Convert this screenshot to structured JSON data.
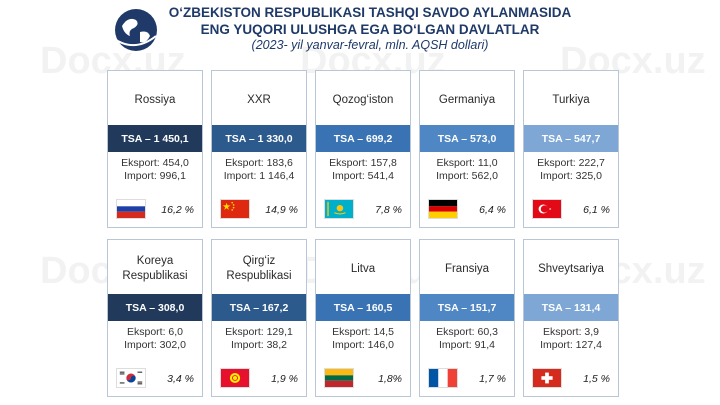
{
  "header": {
    "title_line1": "O‘ZBEKISTON RESPUBLIKASI TASHQI SAVDO AYLANMASIDA",
    "title_line2": "ENG YUQORI ULUSHGA EGA BO‘LGAN DAVLATLAR",
    "subtitle": "(2023- yil yanvar-fevral, mln. AQSH dollari)"
  },
  "watermark": "Docx.uz",
  "countries": [
    {
      "name": "Rossiya",
      "tsa": "TSA – 1 450,1",
      "export": "Eksport: 454,0",
      "import": "Import: 996,1",
      "share": "16,2 %",
      "flag": "russia-flag-icon",
      "band_color": "#213a5c"
    },
    {
      "name": "XXR",
      "tsa": "TSA – 1 330,0",
      "export": "Eksport: 183,6",
      "import": "Import: 1 146,4",
      "share": "14,9 %",
      "flag": "china-flag-icon",
      "band_color": "#2c5a8c"
    },
    {
      "name": "Qozog‘iston",
      "tsa": "TSA – 699,2",
      "export": "Eksport: 157,8",
      "import": "Import: 541,4",
      "share": "7,8 %",
      "flag": "kazakhstan-flag-icon",
      "band_color": "#3a73b4"
    },
    {
      "name": "Germaniya",
      "tsa": "TSA – 573,0",
      "export": "Eksport: 11,0",
      "import": "Import: 562,0",
      "share": "6,4 %",
      "flag": "germany-flag-icon",
      "band_color": "#4f86c4"
    },
    {
      "name": "Turkiya",
      "tsa": "TSA – 547,7",
      "export": "Eksport: 222,7",
      "import": "Import: 325,0",
      "share": "6,1 %",
      "flag": "turkey-flag-icon",
      "band_color": "#7ea7d6"
    },
    {
      "name": "Koreya Respublikasi",
      "tsa": "TSA – 308,0",
      "export": "Eksport: 6,0",
      "import": "Import: 302,0",
      "share": "3,4 %",
      "flag": "korea-flag-icon",
      "band_color": "#213a5c"
    },
    {
      "name": "Qirg‘iz Respublikasi",
      "tsa": "TSA – 167,2",
      "export": "Eksport: 129,1",
      "import": "Import: 38,2",
      "share": "1,9 %",
      "flag": "kyrgyzstan-flag-icon",
      "band_color": "#2c5a8c"
    },
    {
      "name": "Litva",
      "tsa": "TSA – 160,5",
      "export": "Eksport: 14,5",
      "import": "Import: 146,0",
      "share": "1,8%",
      "flag": "lithuania-flag-icon",
      "band_color": "#3a73b4"
    },
    {
      "name": "Fransiya",
      "tsa": "TSA – 151,7",
      "export": "Eksport: 60,3",
      "import": "Import: 91,4",
      "share": "1,7 %",
      "flag": "france-flag-icon",
      "band_color": "#4f86c4"
    },
    {
      "name": "Shveytsariya",
      "tsa": "TSA – 131,4",
      "export": "Eksport: 3,9",
      "import": "Import: 127,4",
      "share": "1,5 %",
      "flag": "switzerland-flag-icon",
      "band_color": "#7ea7d6"
    }
  ]
}
